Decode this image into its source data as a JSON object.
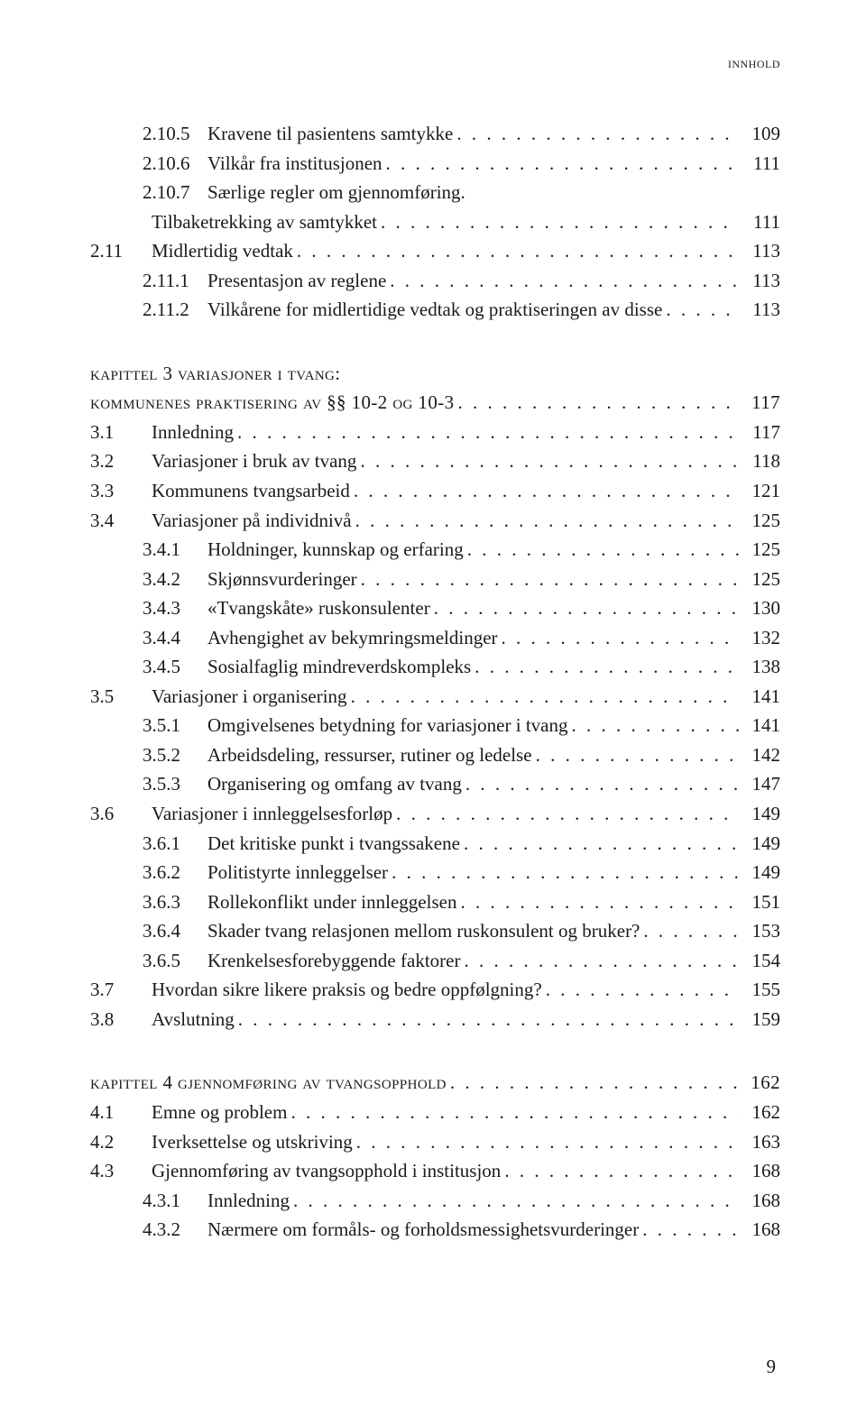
{
  "runningHead": "innhold",
  "pageNumber": "9",
  "blocks": [
    {
      "rows": [
        {
          "level": 2,
          "num": "2.10.5",
          "title": "Kravene til pasientens samtykke",
          "page": "109"
        },
        {
          "level": 2,
          "num": "2.10.6",
          "title": "Vilkår fra institusjonen",
          "page": "111"
        },
        {
          "level": 2,
          "num": "2.10.7",
          "title": "Særlige regler om gjennomføring.",
          "page": ""
        },
        {
          "level": "c",
          "num": "",
          "title": "Tilbaketrekking av samtykket",
          "page": "111"
        },
        {
          "level": 1,
          "num": "2.11",
          "title": "Midlertidig vedtak",
          "page": "113"
        },
        {
          "level": 2,
          "num": "2.11.1",
          "title": "Presentasjon av reglene",
          "page": "113"
        },
        {
          "level": 2,
          "num": "2.11.2",
          "title": "Vilkårene for midlertidige vedtak og praktiseringen av disse",
          "page": "113"
        }
      ]
    },
    {
      "rows": [
        {
          "level": "h",
          "num": "",
          "title": "kapittel 3  variasjoner i tvang:",
          "page": ""
        },
        {
          "level": "h",
          "num": "",
          "title": "kommunenes praktisering av §§ 10-2 og 10-3",
          "page": "117"
        },
        {
          "level": 1,
          "num": "3.1",
          "title": "Innledning",
          "page": "117"
        },
        {
          "level": 1,
          "num": "3.2",
          "title": "Variasjoner i bruk av tvang",
          "page": "118"
        },
        {
          "level": 1,
          "num": "3.3",
          "title": "Kommunens tvangsarbeid",
          "page": "121"
        },
        {
          "level": 1,
          "num": "3.4",
          "title": "Variasjoner på individnivå",
          "page": "125"
        },
        {
          "level": 2,
          "num": "3.4.1",
          "title": "Holdninger, kunnskap og erfaring",
          "page": "125"
        },
        {
          "level": 2,
          "num": "3.4.2",
          "title": "Skjønnsvurderinger",
          "page": "125"
        },
        {
          "level": 2,
          "num": "3.4.3",
          "title": "«Tvangskåte» ruskonsulenter",
          "page": "130"
        },
        {
          "level": 2,
          "num": "3.4.4",
          "title": "Avhengighet av bekymringsmeldinger",
          "page": "132"
        },
        {
          "level": 2,
          "num": "3.4.5",
          "title": "Sosialfaglig mindreverdskompleks",
          "page": "138"
        },
        {
          "level": 1,
          "num": "3.5",
          "title": "Variasjoner i organisering",
          "page": "141"
        },
        {
          "level": 2,
          "num": "3.5.1",
          "title": "Omgivelsenes betydning for variasjoner i tvang",
          "page": "141"
        },
        {
          "level": 2,
          "num": "3.5.2",
          "title": "Arbeidsdeling, ressurser, rutiner og ledelse",
          "page": "142"
        },
        {
          "level": 2,
          "num": "3.5.3",
          "title": "Organisering og omfang av tvang",
          "page": "147"
        },
        {
          "level": 1,
          "num": "3.6",
          "title": "Variasjoner i innleggelsesforløp",
          "page": "149"
        },
        {
          "level": 2,
          "num": "3.6.1",
          "title": "Det kritiske punkt i tvangssakene",
          "page": "149"
        },
        {
          "level": 2,
          "num": "3.6.2",
          "title": "Politistyrte innleggelser",
          "page": "149"
        },
        {
          "level": 2,
          "num": "3.6.3",
          "title": "Rollekonflikt under innleggelsen",
          "page": "151"
        },
        {
          "level": 2,
          "num": "3.6.4",
          "title": "Skader tvang relasjonen mellom ruskonsulent og bruker?",
          "page": "153"
        },
        {
          "level": 2,
          "num": "3.6.5",
          "title": "Krenkelsesforebyggende faktorer",
          "page": "154"
        },
        {
          "level": 1,
          "num": "3.7",
          "title": "Hvordan sikre likere praksis og bedre oppfølgning?",
          "page": "155"
        },
        {
          "level": 1,
          "num": "3.8",
          "title": "Avslutning",
          "page": "159"
        }
      ]
    },
    {
      "rows": [
        {
          "level": "h",
          "num": "",
          "title": "kapittel 4  gjennomføring av tvangsopphold",
          "page": "162"
        },
        {
          "level": 1,
          "num": "4.1",
          "title": "Emne og problem",
          "page": "162"
        },
        {
          "level": 1,
          "num": "4.2",
          "title": "Iverksettelse og utskriving",
          "page": "163"
        },
        {
          "level": 1,
          "num": "4.3",
          "title": "Gjennomføring av tvangsopphold i institusjon",
          "page": "168"
        },
        {
          "level": 2,
          "num": "4.3.1",
          "title": "Innledning",
          "page": "168"
        },
        {
          "level": 2,
          "num": "4.3.2",
          "title": "Nærmere om formåls- og forholdsmessighetsvurderinger",
          "page": "168"
        }
      ]
    }
  ]
}
